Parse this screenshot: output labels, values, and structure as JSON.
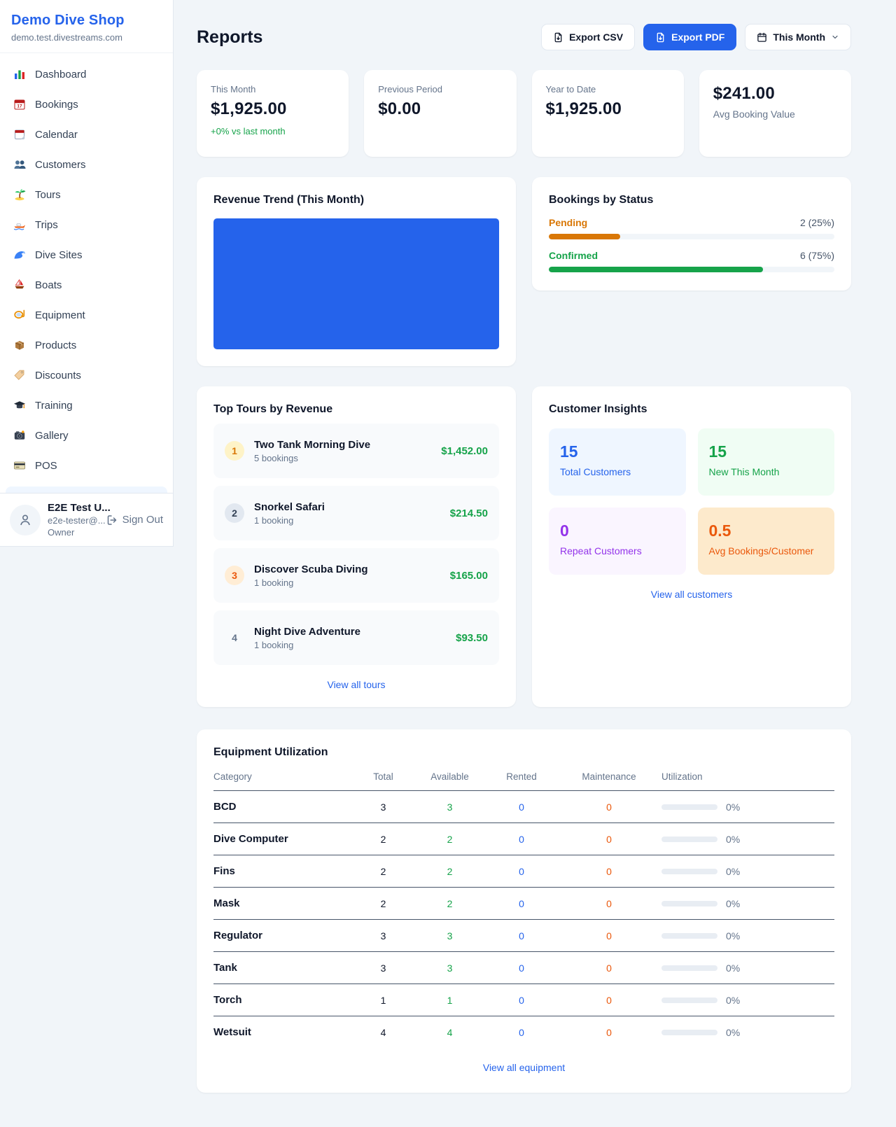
{
  "colors": {
    "accent_blue": "#2563eb",
    "green": "#16a34a",
    "amber": "#d97706",
    "orange": "#ea580c",
    "purple": "#9333ea"
  },
  "sidebar": {
    "brand": {
      "name": "Demo Dive Shop",
      "domain": "demo.test.divestreams.com"
    },
    "nav": [
      {
        "icon": "dashboard-icon",
        "label": "Dashboard"
      },
      {
        "icon": "bookings-icon",
        "label": "Bookings"
      },
      {
        "icon": "calendar-icon",
        "label": "Calendar"
      },
      {
        "icon": "customers-icon",
        "label": "Customers"
      },
      {
        "icon": "tours-icon",
        "label": "Tours"
      },
      {
        "icon": "trips-icon",
        "label": "Trips"
      },
      {
        "icon": "dive-sites-icon",
        "label": "Dive Sites"
      },
      {
        "icon": "boats-icon",
        "label": "Boats"
      },
      {
        "icon": "equipment-icon",
        "label": "Equipment"
      },
      {
        "icon": "products-icon",
        "label": "Products"
      },
      {
        "icon": "discounts-icon",
        "label": "Discounts"
      },
      {
        "icon": "training-icon",
        "label": "Training"
      },
      {
        "icon": "gallery-icon",
        "label": "Gallery"
      },
      {
        "icon": "pos-icon",
        "label": "POS"
      }
    ],
    "user": {
      "name": "E2E Test U...",
      "email": "e2e-tester@...",
      "role": "Owner",
      "sign_out": "Sign Out"
    }
  },
  "header": {
    "title": "Reports",
    "export_csv": "Export CSV",
    "export_pdf": "Export PDF",
    "period": "This Month"
  },
  "stats": [
    {
      "label": "This Month",
      "value": "$1,925.00",
      "delta": "+0% vs last month",
      "value_first": false
    },
    {
      "label": "Previous Period",
      "value": "$0.00",
      "delta": null,
      "value_first": false
    },
    {
      "label": "Year to Date",
      "value": "$1,925.00",
      "delta": null,
      "value_first": false
    },
    {
      "label": "Avg Booking Value",
      "value": "$241.00",
      "delta": null,
      "value_first": true
    }
  ],
  "revenue_trend": {
    "title": "Revenue Trend (This Month)",
    "fill_color": "#2563eb"
  },
  "chart_data": {
    "type": "area",
    "title": "Revenue Trend (This Month)",
    "series": [
      {
        "name": "Revenue",
        "values": [
          1925
        ]
      }
    ],
    "note": "chart renders as a solid filled block for the period, no axes or ticks visible",
    "fill_color": "#2563eb"
  },
  "bookings_by_status": {
    "title": "Bookings by Status",
    "rows": [
      {
        "label": "Pending",
        "value": "2 (25%)",
        "pct": 25,
        "color": "#d97706"
      },
      {
        "label": "Confirmed",
        "value": "6 (75%)",
        "pct": 75,
        "color": "#16a34a"
      }
    ]
  },
  "top_tours": {
    "title": "Top Tours by Revenue",
    "items": [
      {
        "rank": "1",
        "name": "Two Tank Morning Dive",
        "bookings": "5 bookings",
        "revenue": "$1,452.00"
      },
      {
        "rank": "2",
        "name": "Snorkel Safari",
        "bookings": "1 booking",
        "revenue": "$214.50"
      },
      {
        "rank": "3",
        "name": "Discover Scuba Diving",
        "bookings": "1 booking",
        "revenue": "$165.00"
      },
      {
        "rank": "4",
        "name": "Night Dive Adventure",
        "bookings": "1 booking",
        "revenue": "$93.50"
      }
    ],
    "view_all": "View all tours"
  },
  "customer_insights": {
    "title": "Customer Insights",
    "tiles": [
      {
        "value": "15",
        "label": "Total Customers",
        "theme": "blue"
      },
      {
        "value": "15",
        "label": "New This Month",
        "theme": "green"
      },
      {
        "value": "0",
        "label": "Repeat Customers",
        "theme": "purple"
      },
      {
        "value": "0.5",
        "label": "Avg Bookings/Customer",
        "theme": "orange"
      }
    ],
    "view_all": "View all customers"
  },
  "equipment": {
    "title": "Equipment Utilization",
    "columns": [
      "Category",
      "Total",
      "Available",
      "Rented",
      "Maintenance",
      "Utilization"
    ],
    "rows": [
      {
        "category": "BCD",
        "total": "3",
        "available": "3",
        "rented": "0",
        "maintenance": "0",
        "utilization": "0%"
      },
      {
        "category": "Dive Computer",
        "total": "2",
        "available": "2",
        "rented": "0",
        "maintenance": "0",
        "utilization": "0%"
      },
      {
        "category": "Fins",
        "total": "2",
        "available": "2",
        "rented": "0",
        "maintenance": "0",
        "utilization": "0%"
      },
      {
        "category": "Mask",
        "total": "2",
        "available": "2",
        "rented": "0",
        "maintenance": "0",
        "utilization": "0%"
      },
      {
        "category": "Regulator",
        "total": "3",
        "available": "3",
        "rented": "0",
        "maintenance": "0",
        "utilization": "0%"
      },
      {
        "category": "Tank",
        "total": "3",
        "available": "3",
        "rented": "0",
        "maintenance": "0",
        "utilization": "0%"
      },
      {
        "category": "Torch",
        "total": "1",
        "available": "1",
        "rented": "0",
        "maintenance": "0",
        "utilization": "0%"
      },
      {
        "category": "Wetsuit",
        "total": "4",
        "available": "4",
        "rented": "0",
        "maintenance": "0",
        "utilization": "0%"
      }
    ],
    "view_all": "View all equipment"
  }
}
